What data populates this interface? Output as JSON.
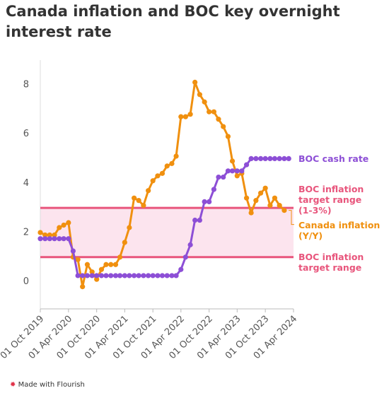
{
  "chart_data": {
    "type": "line",
    "title": "Canada inflation and BOC key overnight interest rate",
    "footer": "Made with Flourish",
    "x": [
      "2019-10-01",
      "2019-11-01",
      "2019-12-01",
      "2020-01-01",
      "2020-02-01",
      "2020-03-01",
      "2020-04-01",
      "2020-05-01",
      "2020-06-01",
      "2020-07-01",
      "2020-08-01",
      "2020-09-01",
      "2020-10-01",
      "2020-11-01",
      "2020-12-01",
      "2021-01-01",
      "2021-02-01",
      "2021-03-01",
      "2021-04-01",
      "2021-05-01",
      "2021-06-01",
      "2021-07-01",
      "2021-08-01",
      "2021-09-01",
      "2021-10-01",
      "2021-11-01",
      "2021-12-01",
      "2022-01-01",
      "2022-02-01",
      "2022-03-01",
      "2022-04-01",
      "2022-05-01",
      "2022-06-01",
      "2022-07-01",
      "2022-08-01",
      "2022-09-01",
      "2022-10-01",
      "2022-11-01",
      "2022-12-01",
      "2023-01-01",
      "2023-02-01",
      "2023-03-01",
      "2023-04-01",
      "2023-05-01",
      "2023-06-01",
      "2023-07-01",
      "2023-08-01",
      "2023-09-01",
      "2023-10-01",
      "2023-11-01",
      "2023-12-01",
      "2024-01-01",
      "2024-02-01",
      "2024-03-01"
    ],
    "series": [
      {
        "name": "Canada inflation (Y/Y)",
        "color": "#f0900f",
        "values": [
          2.0,
          1.9,
          1.9,
          1.9,
          2.2,
          2.3,
          2.4,
          1.0,
          0.9,
          -0.2,
          0.7,
          0.4,
          0.1,
          0.5,
          0.7,
          0.7,
          0.7,
          1.0,
          1.6,
          2.2,
          3.4,
          3.3,
          3.1,
          3.7,
          4.1,
          4.3,
          4.4,
          4.7,
          4.8,
          5.1,
          6.7,
          6.7,
          6.8,
          8.1,
          7.6,
          7.3,
          6.9,
          6.9,
          6.6,
          6.3,
          5.9,
          4.9,
          4.3,
          4.4,
          3.4,
          2.8,
          3.3,
          3.6,
          3.8,
          3.1,
          3.4,
          3.1,
          2.9,
          null
        ]
      },
      {
        "name": "BOC cash rate",
        "color": "#8d4fd6",
        "values": [
          1.75,
          1.75,
          1.75,
          1.75,
          1.75,
          1.75,
          1.75,
          1.25,
          0.25,
          0.25,
          0.25,
          0.25,
          0.25,
          0.25,
          0.25,
          0.25,
          0.25,
          0.25,
          0.25,
          0.25,
          0.25,
          0.25,
          0.25,
          0.25,
          0.25,
          0.25,
          0.25,
          0.25,
          0.25,
          0.25,
          0.5,
          1.0,
          1.5,
          2.5,
          2.5,
          3.25,
          3.25,
          3.75,
          4.25,
          4.25,
          4.5,
          4.5,
          4.5,
          4.5,
          4.75,
          5.0,
          5.0,
          5.0,
          5.0,
          5.0,
          5.0,
          5.0,
          5.0,
          5.0
        ]
      }
    ],
    "reference_lines": [
      {
        "name": "BOC inflation target range (1-3%)",
        "value": 3
      },
      {
        "name": "BOC inflation target range",
        "value": 1
      }
    ],
    "reference_color": "#e8557c",
    "band_color": "#fce4ee",
    "xlim": [
      "2019-10-01",
      "2024-04-01"
    ],
    "ylim": [
      -1.1,
      9
    ],
    "yticks": [
      0,
      2,
      4,
      6,
      8
    ],
    "xticks": [
      {
        "value": "2019-10-01",
        "label": "01 Oct 2019"
      },
      {
        "value": "2020-04-01",
        "label": "01 Apr 2020"
      },
      {
        "value": "2020-10-01",
        "label": "01 Oct 2020"
      },
      {
        "value": "2021-04-01",
        "label": "01 Apr 2021"
      },
      {
        "value": "2021-10-01",
        "label": "01 Oct 2021"
      },
      {
        "value": "2022-04-01",
        "label": "01 Apr 2022"
      },
      {
        "value": "2022-10-01",
        "label": "01 Oct 2022"
      },
      {
        "value": "2023-04-01",
        "label": "01 Apr 2023"
      },
      {
        "value": "2023-10-01",
        "label": "01 Oct 2023"
      },
      {
        "value": "2024-04-01",
        "label": "01 Apr 2024"
      }
    ]
  }
}
